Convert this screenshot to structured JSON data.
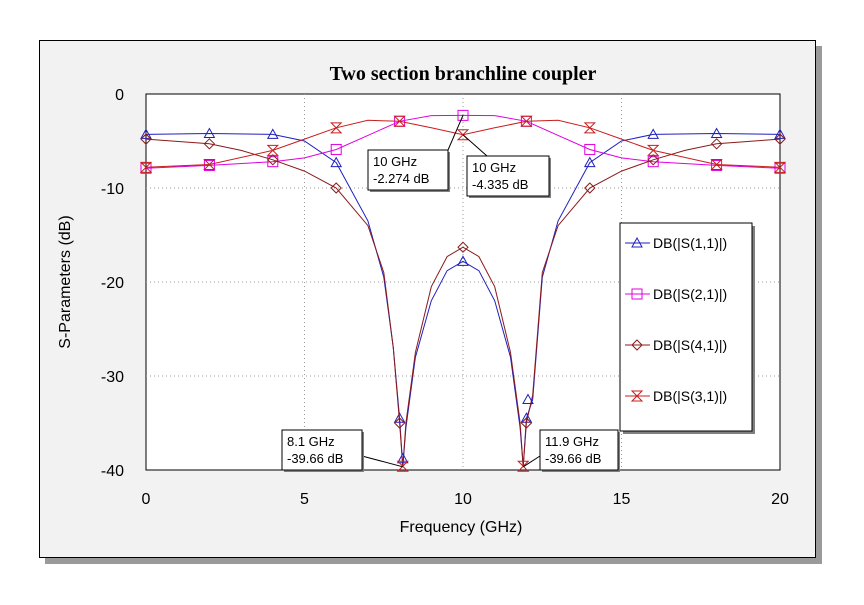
{
  "chart_data": {
    "type": "line",
    "title": "Two section branchline coupler",
    "xlabel": "Frequency (GHz)",
    "ylabel": "S-Parameters (dB)",
    "xlim": [
      0,
      20
    ],
    "ylim": [
      -40,
      0
    ],
    "xticks": [
      "0",
      "5",
      "10",
      "15",
      "20"
    ],
    "yticks": [
      "0",
      "-10",
      "-20",
      "-30",
      "-40"
    ],
    "grid": "dotted",
    "legend_position": "right",
    "series": [
      {
        "name": "DB(|S(1,1)|)",
        "color": "#1f1fbf",
        "marker": "triangle-up",
        "x": [
          0,
          2,
          4,
          5,
          6,
          7,
          7.5,
          7.8,
          8.0,
          8.1,
          8.2,
          8.5,
          9,
          9.5,
          10,
          10.5,
          11,
          11.5,
          11.8,
          11.9,
          12.0,
          12.2,
          12.5,
          13,
          14,
          15,
          16,
          18,
          20
        ],
        "y": [
          -4.3,
          -4.2,
          -4.3,
          -5.0,
          -7.3,
          -13.5,
          -19.5,
          -27.0,
          -34.5,
          -39.66,
          -35.5,
          -28.0,
          -22.0,
          -18.8,
          -17.8,
          -18.8,
          -22.0,
          -28.0,
          -35.5,
          -39.66,
          -34.5,
          -32.5,
          -19.5,
          -13.5,
          -7.3,
          -5.0,
          -4.3,
          -4.2,
          -4.3
        ],
        "markers_x": [
          0,
          2,
          4,
          6,
          8,
          10,
          12,
          14,
          16,
          18,
          20
        ]
      },
      {
        "name": "DB(|S(2,1)|)",
        "color": "#e000e0",
        "marker": "square",
        "x": [
          0,
          2,
          4,
          5,
          6,
          7,
          8,
          9,
          10,
          11,
          12,
          13,
          14,
          15,
          16,
          18,
          20
        ],
        "y": [
          -7.9,
          -7.6,
          -7.2,
          -6.8,
          -5.9,
          -4.4,
          -2.9,
          -2.3,
          -2.274,
          -2.3,
          -2.9,
          -4.4,
          -5.9,
          -6.8,
          -7.2,
          -7.6,
          -7.9
        ],
        "markers_x": [
          0,
          2,
          4,
          6,
          8,
          10,
          12,
          14,
          16,
          18,
          20
        ]
      },
      {
        "name": "DB(|S(4,1)|)",
        "color": "#8b1a1a",
        "marker": "diamond",
        "x": [
          0,
          2,
          3,
          4,
          5,
          6,
          7,
          7.5,
          7.8,
          8.0,
          8.1,
          8.2,
          8.5,
          9,
          9.5,
          10,
          10.5,
          11,
          11.5,
          11.8,
          11.9,
          12.0,
          12.2,
          12.5,
          13,
          14,
          15,
          16,
          17,
          18,
          20
        ],
        "y": [
          -4.8,
          -5.3,
          -6.0,
          -7.0,
          -8.2,
          -10.0,
          -14.0,
          -19.0,
          -27.0,
          -35.0,
          -39.66,
          -35.0,
          -27.5,
          -20.5,
          -17.3,
          -16.3,
          -17.3,
          -20.5,
          -27.5,
          -35.0,
          -39.66,
          -35.0,
          -32.0,
          -19.0,
          -14.0,
          -10.0,
          -8.2,
          -7.0,
          -6.0,
          -5.3,
          -4.8
        ],
        "markers_x": [
          0,
          2,
          4,
          6,
          8,
          10,
          12,
          14,
          16,
          18,
          20
        ]
      },
      {
        "name": "DB(|S(3,1)|)",
        "color": "#c81e1e",
        "marker": "hourglass",
        "x": [
          0,
          2,
          4,
          5,
          6,
          7,
          8,
          9,
          10,
          11,
          12,
          13,
          14,
          15,
          16,
          18,
          20
        ],
        "y": [
          -7.8,
          -7.5,
          -6.0,
          -4.8,
          -3.6,
          -2.8,
          -2.9,
          -3.6,
          -4.335,
          -3.6,
          -2.9,
          -2.8,
          -3.6,
          -4.8,
          -6.0,
          -7.5,
          -7.8
        ],
        "markers_x": [
          0,
          2,
          4,
          6,
          8,
          10,
          12,
          14,
          16,
          18,
          20
        ]
      }
    ],
    "annotations": [
      {
        "line1": "10 GHz",
        "line2": "-2.274 dB",
        "x": 10,
        "y": -2.274
      },
      {
        "line1": "10 GHz",
        "line2": "-4.335 dB",
        "x": 10,
        "y": -4.335
      },
      {
        "line1": "8.1 GHz",
        "line2": "-39.66 dB",
        "x": 8.1,
        "y": -39.66
      },
      {
        "line1": "11.9 GHz",
        "line2": "-39.66 dB",
        "x": 11.9,
        "y": -39.66
      }
    ]
  }
}
